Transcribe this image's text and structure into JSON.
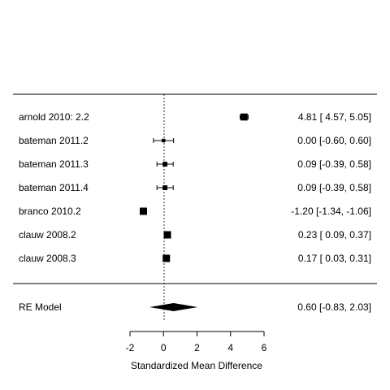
{
  "chart_data": {
    "type": "forest",
    "xlabel": "Standardized Mean Difference",
    "xlim": [
      -2,
      6
    ],
    "xticks": [
      -2,
      0,
      2,
      4,
      6
    ],
    "reference_line": 0,
    "colors": {
      "marks": "#000000",
      "background": "#ffffff"
    },
    "studies": [
      {
        "label": "arnold 2010: 2.2",
        "estimate": 4.81,
        "ci_lower": 4.57,
        "ci_upper": 5.05,
        "ci_text": "4.81 [ 4.57,  5.05]",
        "weight": 0.95
      },
      {
        "label": "bateman 2011.2",
        "estimate": 0.0,
        "ci_lower": -0.6,
        "ci_upper": 0.6,
        "ci_text": "0.00 [-0.60,  0.60]",
        "weight": 0.35
      },
      {
        "label": "bateman 2011.3",
        "estimate": 0.09,
        "ci_lower": -0.39,
        "ci_upper": 0.58,
        "ci_text": "0.09 [-0.39,  0.58]",
        "weight": 0.55
      },
      {
        "label": "bateman 2011.4",
        "estimate": 0.09,
        "ci_lower": -0.39,
        "ci_upper": 0.58,
        "ci_text": "0.09 [-0.39,  0.58]",
        "weight": 0.55
      },
      {
        "label": "branco 2010.2",
        "estimate": -1.2,
        "ci_lower": -1.34,
        "ci_upper": -1.06,
        "ci_text": "-1.20 [-1.34, -1.06]",
        "weight": 1.0
      },
      {
        "label": "clauw 2008.2",
        "estimate": 0.23,
        "ci_lower": 0.09,
        "ci_upper": 0.37,
        "ci_text": "0.23 [ 0.09,  0.37]",
        "weight": 1.0
      },
      {
        "label": "clauw 2008.3",
        "estimate": 0.17,
        "ci_lower": 0.03,
        "ci_upper": 0.31,
        "ci_text": "0.17 [ 0.03,  0.31]",
        "weight": 1.0
      }
    ],
    "summary": {
      "label": "RE Model",
      "estimate": 0.6,
      "ci_lower": -0.83,
      "ci_upper": 2.03,
      "ci_text": "0.60 [-0.83,  2.03]"
    }
  }
}
